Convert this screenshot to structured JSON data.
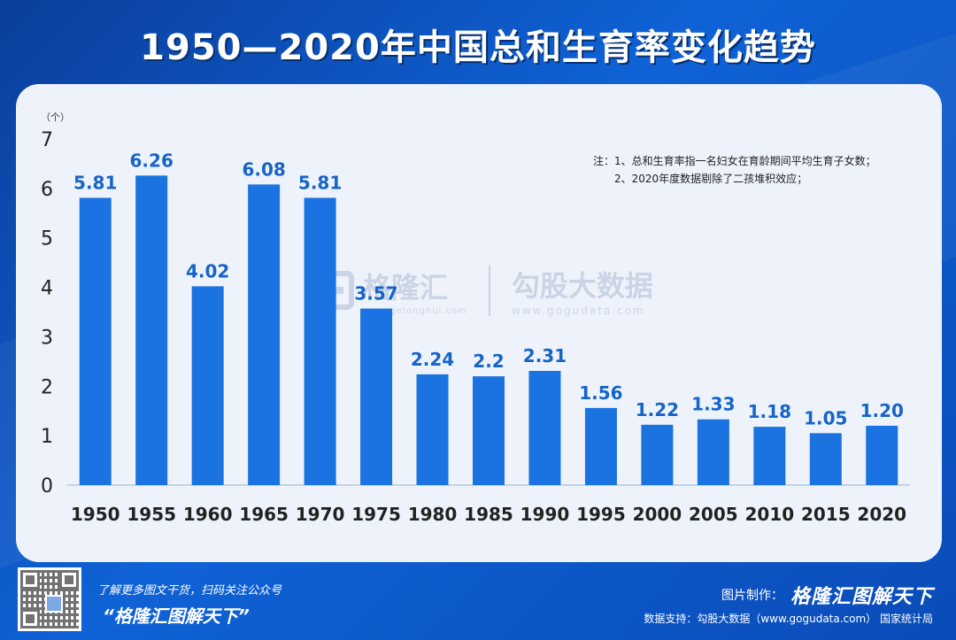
{
  "title": "1950—2020年中国总和生育率变化趋势",
  "notes": [
    "注：1、总和生育率指一名妇女在育龄期间平均生育子女数；",
    "2、2020年度数据剔除了二孩堆积效应；"
  ],
  "watermark": {
    "left_name": "格隆汇",
    "left_url": "www.gelonghui.com",
    "right_name": "勾股大数据",
    "right_url": "www.gogudata.com"
  },
  "footer": {
    "slogan": "了解更多图文干货，扫码关注公众号",
    "account": "“格隆汇图解天下”",
    "made_by_label": "图片制作：",
    "made_by_brand": "格隆汇图解天下",
    "sources": "数据支持：勾股大数据（www.gogudata.com）  国家统计局"
  },
  "colors": {
    "background": "#0f62d6",
    "panel": "#eef3fb",
    "bar": "#1a73e0",
    "data_label": "#1664c8"
  },
  "chart_data": {
    "type": "bar",
    "title": "1950—2020年中国总和生育率变化趋势",
    "ylabel": "（个）",
    "xlabel": "",
    "ylim": [
      0,
      7
    ],
    "yticks": [
      0,
      1,
      2,
      3,
      4,
      5,
      6,
      7
    ],
    "grid": false,
    "categories": [
      "1950",
      "1955",
      "1960",
      "1965",
      "1970",
      "1975",
      "1980",
      "1985",
      "1990",
      "1995",
      "2000",
      "2005",
      "2010",
      "2015",
      "2020"
    ],
    "values": [
      5.81,
      6.26,
      4.02,
      6.08,
      5.81,
      3.57,
      2.24,
      2.2,
      2.31,
      1.56,
      1.22,
      1.33,
      1.18,
      1.05,
      1.2
    ],
    "labels": [
      "5.81",
      "6.26",
      "4.02",
      "6.08",
      "5.81",
      "3.57",
      "2.24",
      "2.2",
      "2.31",
      "1.56",
      "1.22",
      "1.33",
      "1.18",
      "1.05",
      "1.20"
    ]
  }
}
